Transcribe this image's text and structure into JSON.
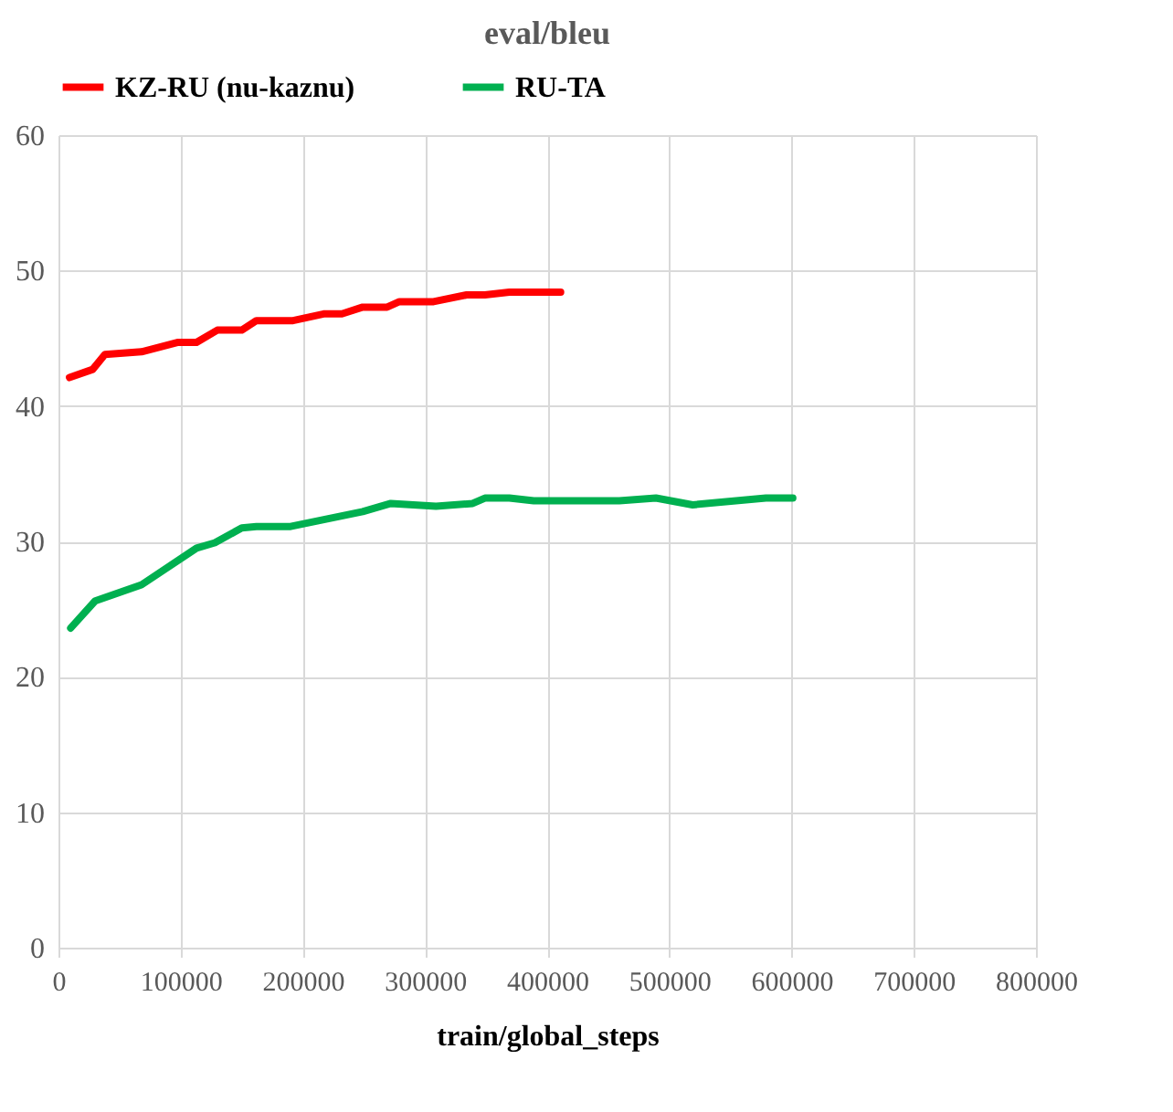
{
  "chart_data": {
    "type": "line",
    "title": "eval/bleu",
    "xlabel": "train/global_steps",
    "legend": "top",
    "grid": true,
    "marker": "none",
    "line_style": "solid",
    "xlim": [
      0,
      800000
    ],
    "xticks": [
      0,
      100000,
      200000,
      300000,
      400000,
      500000,
      600000,
      700000,
      800000
    ],
    "ylim": [
      0,
      60
    ],
    "yticks": [
      0,
      10,
      20,
      30,
      40,
      50,
      60
    ],
    "series": [
      {
        "name": "KZ-RU (nu-kaznu)",
        "color": "#ff0000",
        "x": [
          9000,
          28000,
          38000,
          68000,
          98000,
          113000,
          130000,
          150000,
          162000,
          192000,
          217000,
          232000,
          249000,
          269000,
          279000,
          307000,
          334000,
          349000,
          369000,
          411000
        ],
        "values": [
          42.1,
          42.7,
          43.8,
          44.0,
          44.7,
          44.7,
          45.6,
          45.6,
          46.3,
          46.3,
          46.8,
          46.8,
          47.3,
          47.3,
          47.7,
          47.7,
          48.2,
          48.2,
          48.4,
          48.4
        ]
      },
      {
        "name": "RU-TA",
        "color": "#00b050",
        "x": [
          10000,
          30000,
          68000,
          113000,
          128000,
          150000,
          162000,
          190000,
          249000,
          272000,
          309000,
          339000,
          349000,
          369000,
          389000,
          459000,
          489000,
          519000,
          579000,
          601000
        ],
        "values": [
          23.6,
          25.6,
          26.8,
          29.5,
          29.9,
          31.0,
          31.1,
          31.1,
          32.2,
          32.8,
          32.6,
          32.8,
          33.2,
          33.2,
          33.0,
          33.0,
          33.2,
          32.7,
          33.2,
          33.2
        ]
      }
    ]
  }
}
